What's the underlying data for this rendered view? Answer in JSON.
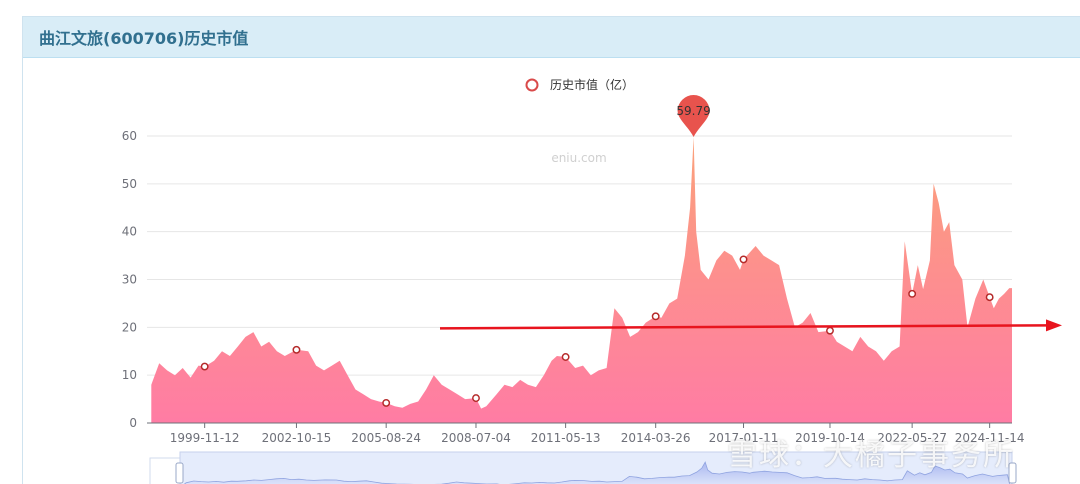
{
  "panel": {
    "title": "曲江文旅(600706)历史市值"
  },
  "watermark": "eniu.com",
  "overlay_watermark": "雪球：大橘子事务所",
  "colors": {
    "area_top": "#fba17a",
    "area_bottom": "#ff7ca4",
    "arrow": "#e8141e",
    "marker": "#e8534d",
    "dot": "#b52a2a",
    "header_bg": "#d9edf7",
    "title": "#31708f"
  },
  "chart_data": {
    "type": "area",
    "legend": "历史市值（亿）",
    "ylim": [
      0,
      60
    ],
    "yticks": [
      0,
      10,
      20,
      30,
      40,
      50,
      60
    ],
    "xticks": [
      "1999-11-12",
      "2002-10-15",
      "2005-08-24",
      "2008-07-04",
      "2011-05-13",
      "2014-03-26",
      "2017-01-11",
      "2019-10-14",
      "2022-05-27",
      "2024-11-14"
    ],
    "x": [
      "1998-03-01",
      "1998-06-01",
      "1998-09-01",
      "1998-12-01",
      "1999-03-01",
      "1999-06-01",
      "1999-09-01",
      "1999-11-12",
      "2000-03-01",
      "2000-06-01",
      "2000-09-01",
      "2000-12-01",
      "2001-03-01",
      "2001-06-01",
      "2001-09-01",
      "2001-12-01",
      "2002-03-01",
      "2002-06-01",
      "2002-10-15",
      "2003-03-01",
      "2003-06-01",
      "2003-09-01",
      "2003-12-01",
      "2004-03-01",
      "2004-06-01",
      "2004-09-01",
      "2004-12-01",
      "2005-03-01",
      "2005-06-01",
      "2005-08-24",
      "2005-12-01",
      "2006-03-01",
      "2006-06-01",
      "2006-09-01",
      "2006-12-01",
      "2007-03-01",
      "2007-06-01",
      "2007-09-01",
      "2007-12-01",
      "2008-03-01",
      "2008-07-04",
      "2008-09-01",
      "2008-11-01",
      "2009-03-01",
      "2009-06-01",
      "2009-09-01",
      "2009-12-01",
      "2010-03-01",
      "2010-06-01",
      "2010-09-01",
      "2010-12-01",
      "2011-02-01",
      "2011-05-13",
      "2011-09-01",
      "2011-12-01",
      "2012-03-01",
      "2012-06-01",
      "2012-09-01",
      "2012-12-01",
      "2013-03-01",
      "2013-06-01",
      "2013-09-01",
      "2013-12-01",
      "2014-03-26",
      "2014-06-01",
      "2014-09-01",
      "2014-12-01",
      "2015-03-01",
      "2015-05-01",
      "2015-06-10",
      "2015-07-10",
      "2015-09-01",
      "2015-12-01",
      "2016-03-01",
      "2016-06-01",
      "2016-09-01",
      "2016-12-01",
      "2017-01-11",
      "2017-06-01",
      "2017-09-01",
      "2017-12-01",
      "2018-03-01",
      "2018-06-01",
      "2018-09-01",
      "2018-12-01",
      "2019-03-01",
      "2019-06-01",
      "2019-10-14",
      "2020-01-01",
      "2020-04-01",
      "2020-07-01",
      "2020-10-01",
      "2021-01-01",
      "2021-04-01",
      "2021-07-01",
      "2021-10-01",
      "2022-01-01",
      "2022-03-01",
      "2022-05-27",
      "2022-08-01",
      "2022-10-01",
      "2022-12-20",
      "2023-02-01",
      "2023-04-01",
      "2023-06-01",
      "2023-08-01",
      "2023-10-01",
      "2024-01-01",
      "2024-03-01",
      "2024-06-01",
      "2024-09-01",
      "2024-11-14",
      "2025-01-01",
      "2025-03-01",
      "2025-05-01",
      "2025-07-01"
    ],
    "values": [
      8,
      12.5,
      11,
      10,
      11.5,
      9.5,
      12,
      11.8,
      13,
      15,
      14,
      16,
      18,
      19,
      16,
      17,
      15,
      14,
      15.3,
      15,
      12,
      11,
      12,
      13,
      10,
      7,
      6,
      5,
      4.5,
      4.2,
      3.5,
      3.2,
      4,
      4.5,
      7,
      10,
      8,
      7,
      6,
      5,
      5.2,
      3,
      3.5,
      6,
      8,
      7.5,
      9,
      8,
      7.5,
      10,
      13,
      14,
      13.8,
      11.5,
      12,
      10,
      11,
      11.5,
      24,
      22,
      18,
      19,
      21,
      22.3,
      22,
      25,
      26,
      35,
      45,
      59.79,
      40,
      32,
      30,
      34,
      36,
      35,
      32,
      34.2,
      37,
      35,
      34,
      33,
      26,
      20,
      21,
      23,
      19,
      19.3,
      17,
      16,
      15,
      18,
      16,
      15,
      13,
      15,
      16,
      38,
      27,
      33,
      28,
      34,
      50,
      46,
      40,
      42,
      33,
      30,
      20,
      26,
      30,
      26.3,
      24,
      26,
      27,
      28.2
    ],
    "markers": [
      {
        "x": "1999-11-12",
        "y": 11.8
      },
      {
        "x": "2002-10-15",
        "y": 15.3
      },
      {
        "x": "2005-08-24",
        "y": 4.2
      },
      {
        "x": "2008-07-04",
        "y": 5.2
      },
      {
        "x": "2011-05-13",
        "y": 13.8
      },
      {
        "x": "2014-03-26",
        "y": 22.3
      },
      {
        "x": "2017-01-11",
        "y": 34.2
      },
      {
        "x": "2019-10-14",
        "y": 19.3
      },
      {
        "x": "2022-05-27",
        "y": 27
      },
      {
        "x": "2024-11-14",
        "y": 26.3
      }
    ],
    "max_label": {
      "x": "2015-06-10",
      "value": "59.79"
    },
    "trend_arrow": {
      "y": 20
    }
  }
}
